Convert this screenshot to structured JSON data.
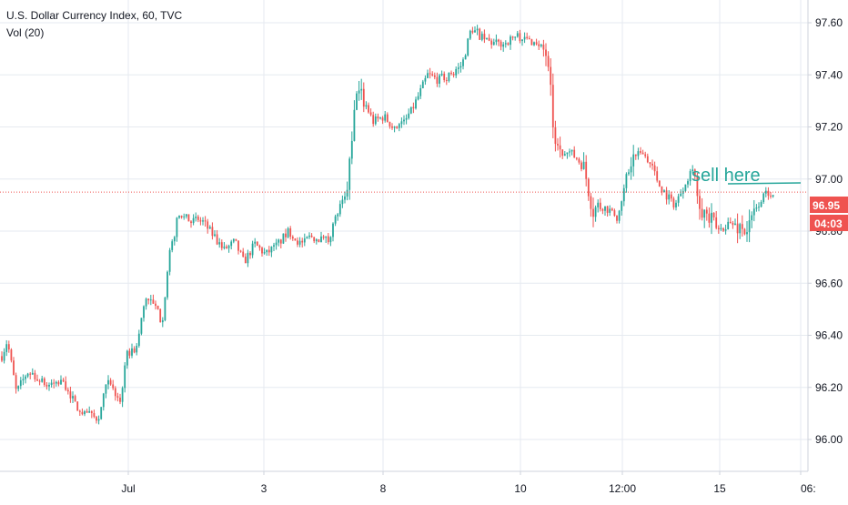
{
  "header": {
    "symbol_line": "U.S. Dollar Currency Index, 60, TVC",
    "indicator_line": "Vol (20)"
  },
  "price_scale": {
    "last_price": "96.95",
    "countdown": "04:03"
  },
  "annotation": {
    "text": "sell here",
    "color": "#26a69a"
  },
  "colors": {
    "up": "#26a69a",
    "down": "#ef5350",
    "grid": "#e6eaf0",
    "price_line": "#ef5350",
    "axis_text": "#131722"
  },
  "chart_data": {
    "type": "candlestick",
    "title": "U.S. Dollar Currency Index, 60, TVC",
    "y_ticks": [
      "97.60",
      "97.40",
      "97.20",
      "97.00",
      "96.80",
      "96.60",
      "96.40",
      "96.20",
      "96.00"
    ],
    "ylim": [
      95.87,
      97.85
    ],
    "x_ticks": [
      "Jul",
      "3",
      "8",
      "10",
      "12:00",
      "15",
      "06:"
    ],
    "last_price": 96.95,
    "grid": true,
    "path_points": [
      [
        0,
        96.3
      ],
      [
        8,
        96.38
      ],
      [
        18,
        96.18
      ],
      [
        30,
        96.26
      ],
      [
        50,
        96.21
      ],
      [
        70,
        96.22
      ],
      [
        88,
        96.1
      ],
      [
        108,
        96.08
      ],
      [
        118,
        96.22
      ],
      [
        132,
        96.15
      ],
      [
        140,
        96.33
      ],
      [
        150,
        96.35
      ],
      [
        160,
        96.55
      ],
      [
        172,
        96.5
      ],
      [
        178,
        96.45
      ],
      [
        186,
        96.7
      ],
      [
        196,
        96.86
      ],
      [
        210,
        96.84
      ],
      [
        222,
        96.84
      ],
      [
        235,
        96.78
      ],
      [
        245,
        96.72
      ],
      [
        258,
        96.76
      ],
      [
        268,
        96.68
      ],
      [
        280,
        96.75
      ],
      [
        292,
        96.71
      ],
      [
        305,
        96.75
      ],
      [
        318,
        96.8
      ],
      [
        330,
        96.75
      ],
      [
        342,
        96.78
      ],
      [
        360,
        96.76
      ],
      [
        372,
        96.88
      ],
      [
        380,
        96.93
      ],
      [
        386,
        97.1
      ],
      [
        392,
        97.35
      ],
      [
        400,
        97.3
      ],
      [
        410,
        97.22
      ],
      [
        422,
        97.24
      ],
      [
        432,
        97.2
      ],
      [
        442,
        97.22
      ],
      [
        452,
        97.26
      ],
      [
        460,
        97.32
      ],
      [
        470,
        97.4
      ],
      [
        482,
        97.38
      ],
      [
        496,
        97.4
      ],
      [
        508,
        97.44
      ],
      [
        518,
        97.58
      ],
      [
        530,
        97.54
      ],
      [
        542,
        97.52
      ],
      [
        554,
        97.52
      ],
      [
        568,
        97.55
      ],
      [
        582,
        97.53
      ],
      [
        592,
        97.52
      ],
      [
        600,
        97.48
      ],
      [
        606,
        97.3
      ],
      [
        610,
        97.12
      ],
      [
        618,
        97.08
      ],
      [
        626,
        97.1
      ],
      [
        634,
        97.08
      ],
      [
        642,
        97.04
      ],
      [
        652,
        96.88
      ],
      [
        660,
        96.9
      ],
      [
        670,
        96.88
      ],
      [
        680,
        96.85
      ],
      [
        688,
        97.0
      ],
      [
        696,
        97.08
      ],
      [
        706,
        97.1
      ],
      [
        716,
        97.06
      ],
      [
        724,
        96.98
      ],
      [
        732,
        96.94
      ],
      [
        742,
        96.9
      ],
      [
        752,
        96.98
      ],
      [
        762,
        97.05
      ],
      [
        770,
        96.9
      ],
      [
        778,
        96.85
      ],
      [
        790,
        96.8
      ],
      [
        800,
        96.83
      ],
      [
        812,
        96.82
      ],
      [
        822,
        96.8
      ],
      [
        828,
        96.86
      ],
      [
        836,
        96.92
      ],
      [
        844,
        96.95
      ],
      [
        852,
        96.95
      ]
    ],
    "volatile_segments": [
      [
        380,
        400
      ],
      [
        596,
        620
      ],
      [
        640,
        660
      ],
      [
        688,
        700
      ],
      [
        764,
        790
      ],
      [
        810,
        830
      ]
    ]
  }
}
